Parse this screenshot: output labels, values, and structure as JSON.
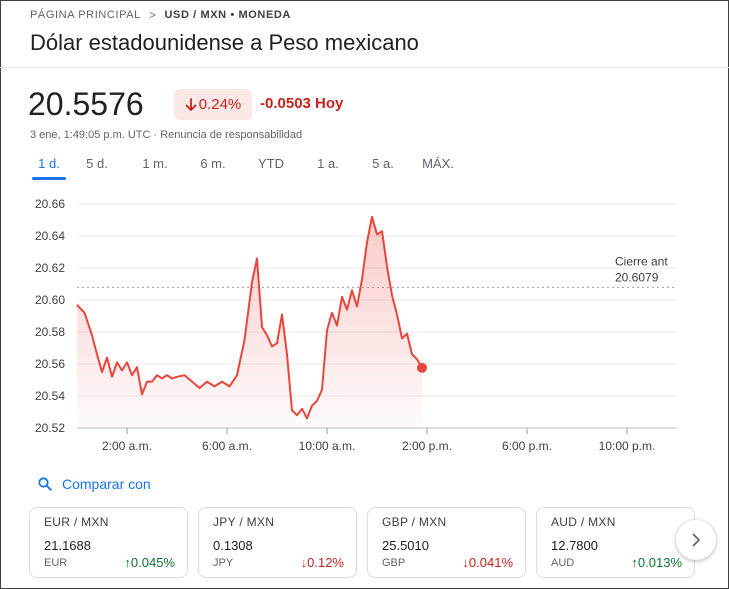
{
  "breadcrumb": {
    "home": "PÁGINA PRINCIPAL",
    "separator": ">",
    "current": "USD / MXN • MONEDA"
  },
  "title": "Dólar estadounidense a Peso mexicano",
  "quote": {
    "price": "20.5576",
    "change_pct": "0.24%",
    "change_abs": "-0.0503",
    "change_period": "Hoy",
    "timestamp": "3 ene, 1:49:05 p.m. UTC",
    "disclaimer": "Renuncia de responsabilidad",
    "meta_separator": " · "
  },
  "tabs": [
    "1 d.",
    "5 d.",
    "1 m.",
    "6 m.",
    "YTD",
    "1 a.",
    "5 a.",
    "MÁX."
  ],
  "active_tab": 0,
  "colors": {
    "accent": "#1a73e8",
    "down": "#c5221f",
    "up": "#137333",
    "line": "#e8453c"
  },
  "chart_data": {
    "type": "area",
    "x_ticks": [
      "2:00 a.m.",
      "6:00 a.m.",
      "10:00 a.m.",
      "2:00 p.m.",
      "6:00 p.m.",
      "10:00 p.m."
    ],
    "y_ticks": [
      "20.52",
      "20.54",
      "20.56",
      "20.58",
      "20.60",
      "20.62",
      "20.64",
      "20.66"
    ],
    "ylim": [
      20.52,
      20.66
    ],
    "x_range_hours": [
      0,
      24
    ],
    "grid": true,
    "prev_close": {
      "label": "Cierre ant",
      "value": "20.6079"
    },
    "series": [
      {
        "x_hours": [
          0.0,
          0.3,
          0.6,
          0.8,
          1.0,
          1.2,
          1.4,
          1.6,
          1.8,
          2.0,
          2.2,
          2.4,
          2.6,
          2.8,
          3.0,
          3.2,
          3.4,
          3.6,
          3.8,
          4.0,
          4.3,
          4.6,
          4.9,
          5.2,
          5.5,
          5.8,
          6.1,
          6.4,
          6.7,
          7.0,
          7.2,
          7.4,
          7.6,
          7.8,
          8.0,
          8.2,
          8.4,
          8.6,
          8.8,
          9.0,
          9.2,
          9.4,
          9.6,
          9.8,
          10.0,
          10.2,
          10.4,
          10.6,
          10.8,
          11.0,
          11.2,
          11.4,
          11.6,
          11.8,
          12.0,
          12.2,
          12.4,
          12.6,
          12.8,
          13.0,
          13.2,
          13.4,
          13.6,
          13.8
        ],
        "values": [
          20.597,
          20.592,
          20.578,
          20.566,
          20.555,
          20.564,
          20.552,
          20.561,
          20.556,
          20.561,
          20.553,
          20.558,
          20.541,
          20.549,
          20.549,
          20.553,
          20.551,
          20.553,
          20.551,
          20.552,
          20.553,
          20.549,
          20.545,
          20.549,
          20.546,
          20.549,
          20.546,
          20.553,
          20.575,
          20.611,
          20.626,
          20.583,
          20.578,
          20.571,
          20.573,
          20.591,
          20.566,
          20.531,
          20.528,
          20.532,
          20.526,
          20.534,
          20.537,
          20.544,
          20.581,
          20.592,
          20.584,
          20.602,
          20.594,
          20.606,
          20.596,
          20.613,
          20.636,
          20.652,
          20.641,
          20.643,
          20.621,
          20.603,
          20.591,
          20.576,
          20.579,
          20.566,
          20.563,
          20.5576
        ]
      }
    ]
  },
  "compare": {
    "label": "Comparar con"
  },
  "cards": [
    {
      "pair": "EUR / MXN",
      "value": "21.1688",
      "code": "EUR",
      "change": "0.045%",
      "direction": "up"
    },
    {
      "pair": "JPY / MXN",
      "value": "0.1308",
      "code": "JPY",
      "change": "0.12%",
      "direction": "down"
    },
    {
      "pair": "GBP / MXN",
      "value": "25.5010",
      "code": "GBP",
      "change": "0.041%",
      "direction": "down"
    },
    {
      "pair": "AUD / MXN",
      "value": "12.7800",
      "code": "AUD",
      "change": "0.013%",
      "direction": "up"
    }
  ],
  "icons": {
    "breadcrumb_sep": "chevron-right-icon",
    "down_arrow": "arrow-down-icon",
    "up_arrow": "arrow-up-icon",
    "compare": "search-icon",
    "next": "chevron-right-icon"
  }
}
